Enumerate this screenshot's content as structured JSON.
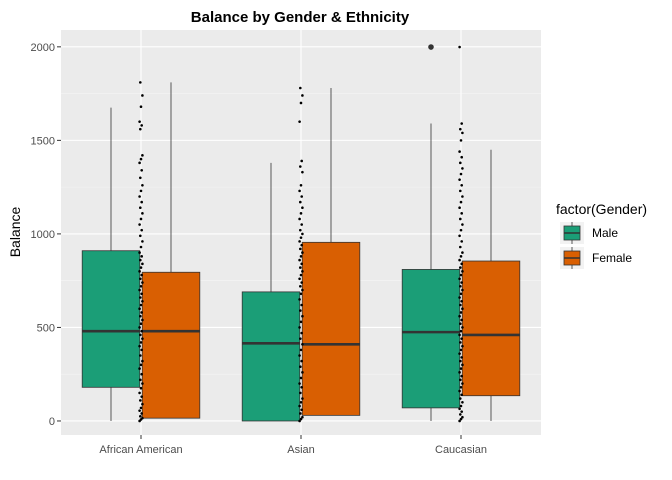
{
  "chart_data": {
    "type": "boxplot",
    "title": "Balance by Gender & Ethnicity",
    "xlabel": "",
    "ylabel": "Balance",
    "ylim": [
      -75,
      2090
    ],
    "yticks": [
      0,
      500,
      1000,
      1500,
      2000
    ],
    "categories": [
      "African American",
      "Asian",
      "Caucasian"
    ],
    "grid": true,
    "legend": {
      "title": "factor(Gender)",
      "position": "right"
    },
    "series": [
      {
        "name": "Male",
        "color": "#1b9e77",
        "boxes": [
          {
            "category": "African American",
            "min": 0,
            "q1": 180,
            "median": 480,
            "q3": 910,
            "max": 1675,
            "outliers": []
          },
          {
            "category": "Asian",
            "min": 0,
            "q1": 0,
            "median": 415,
            "q3": 690,
            "max": 1380,
            "outliers": []
          },
          {
            "category": "Caucasian",
            "min": 0,
            "q1": 70,
            "median": 475,
            "q3": 810,
            "max": 1590,
            "outliers": [
              1999
            ]
          }
        ]
      },
      {
        "name": "Female",
        "color": "#d95f02",
        "boxes": [
          {
            "category": "African American",
            "min": 15,
            "q1": 15,
            "median": 480,
            "q3": 795,
            "max": 1810,
            "outliers": []
          },
          {
            "category": "Asian",
            "min": 30,
            "q1": 30,
            "median": 410,
            "q3": 955,
            "max": 1780,
            "outliers": []
          },
          {
            "category": "Caucasian",
            "min": 0,
            "q1": 135,
            "median": 460,
            "q3": 855,
            "max": 1450,
            "outliers": []
          }
        ]
      }
    ],
    "jitter_points": [
      {
        "category": "African American",
        "values": [
          0,
          8,
          15,
          25,
          40,
          55,
          70,
          90,
          110,
          130,
          150,
          175,
          200,
          220,
          250,
          280,
          300,
          320,
          350,
          380,
          400,
          420,
          440,
          460,
          480,
          500,
          520,
          540,
          560,
          580,
          600,
          620,
          640,
          660,
          680,
          700,
          720,
          740,
          760,
          780,
          800,
          820,
          840,
          860,
          880,
          900,
          930,
          960,
          990,
          1020,
          1050,
          1080,
          1110,
          1140,
          1170,
          1200,
          1230,
          1260,
          1300,
          1340,
          1380,
          1400,
          1420,
          1560,
          1580,
          1600,
          1680,
          1740,
          1810
        ]
      },
      {
        "category": "Asian",
        "values": [
          0,
          10,
          20,
          40,
          60,
          80,
          100,
          120,
          150,
          180,
          200,
          230,
          260,
          290,
          320,
          350,
          380,
          410,
          440,
          470,
          500,
          530,
          560,
          590,
          620,
          650,
          680,
          700,
          720,
          740,
          760,
          780,
          800,
          820,
          840,
          860,
          880,
          900,
          920,
          940,
          960,
          980,
          1000,
          1020,
          1050,
          1080,
          1110,
          1140,
          1170,
          1200,
          1230,
          1260,
          1330,
          1360,
          1390,
          1600,
          1700,
          1740,
          1780
        ]
      },
      {
        "category": "Caucasian",
        "values": [
          0,
          10,
          20,
          35,
          50,
          65,
          80,
          100,
          120,
          140,
          160,
          180,
          200,
          220,
          240,
          260,
          280,
          300,
          320,
          340,
          360,
          380,
          400,
          420,
          440,
          460,
          480,
          500,
          520,
          540,
          560,
          580,
          600,
          620,
          640,
          660,
          680,
          700,
          720,
          740,
          760,
          780,
          800,
          820,
          840,
          860,
          880,
          900,
          930,
          960,
          990,
          1020,
          1050,
          1080,
          1110,
          1140,
          1170,
          1200,
          1230,
          1260,
          1290,
          1320,
          1350,
          1380,
          1410,
          1440,
          1500,
          1540,
          1560,
          1590,
          1999
        ]
      }
    ]
  }
}
